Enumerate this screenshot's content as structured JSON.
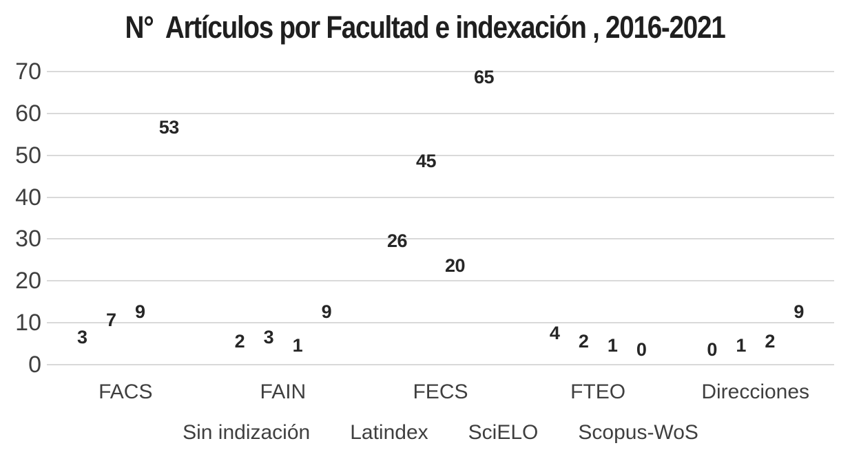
{
  "chart_data": {
    "type": "bar",
    "subtype": "clustered-columns-hidden-with-data-labels",
    "title": "N°  Artículos por Facultad e indexación , 2016-2021",
    "categories": [
      "FACS",
      "FAIN",
      "FECS",
      "FTEO",
      "Direcciones"
    ],
    "series": [
      {
        "name": "Sin indización",
        "values": [
          3,
          2,
          26,
          4,
          0
        ]
      },
      {
        "name": "Latindex",
        "values": [
          7,
          3,
          45,
          2,
          1
        ]
      },
      {
        "name": "SciELO",
        "values": [
          9,
          1,
          20,
          1,
          2
        ]
      },
      {
        "name": "Scopus-WoS",
        "values": [
          53,
          9,
          65,
          0,
          9
        ]
      }
    ],
    "xlabel": "",
    "ylabel": "",
    "ylim": [
      0,
      70
    ],
    "yticks": [
      0,
      10,
      20,
      30,
      40,
      50,
      60,
      70
    ],
    "grid": true,
    "bars_visible": false,
    "data_labels_position": "outside-end",
    "legend_position": "bottom"
  },
  "colors": {
    "background": "#ffffff",
    "title": "#1f1f1f",
    "data_label": "#262626",
    "axis_text": "#3f3f3f",
    "gridline": "#d9d9d9"
  }
}
